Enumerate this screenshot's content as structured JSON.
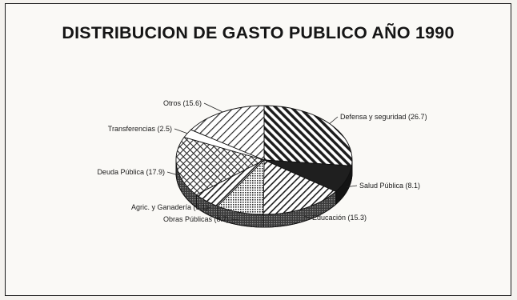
{
  "chart_data": {
    "type": "pie",
    "title": "DISTRIBUCION DE GASTO PUBLICO AÑO 1990",
    "three_d": true,
    "legend": "none",
    "categories": [
      "Defensa y seguridad",
      "Salud Pública",
      "Educación",
      "Obras Públicas",
      "Agric. y Ganadería",
      "Deuda Pública",
      "Transferencias",
      "Otros"
    ],
    "values": [
      26.7,
      8.1,
      15.3,
      8.7,
      5.1,
      17.9,
      2.5,
      15.6
    ],
    "labels": [
      "Defensa y seguridad (26.7)",
      "Salud Pública (8.1)",
      "Educación (15.3)",
      "Obras Públicas (8.7)",
      "Agric. y Ganadería (5.1)",
      "Deuda Pública (17.9)",
      "Transferencias (2.5)",
      "Otros (15.6)"
    ],
    "patterns": [
      "diag-back",
      "solid-dark",
      "diag-fwd",
      "dots",
      "diag-fwd",
      "crosshatch",
      "plain",
      "diag-fwd-light"
    ]
  }
}
